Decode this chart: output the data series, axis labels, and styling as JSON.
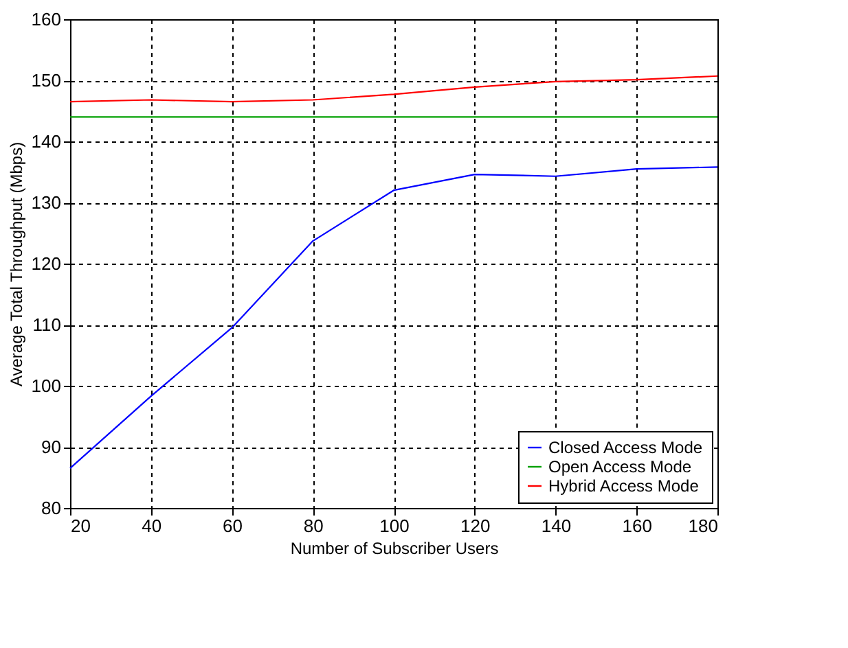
{
  "chart_data": {
    "type": "line",
    "xlabel": "Number of Subscriber Users",
    "ylabel": "Average Total Throughput (Mbps)",
    "x": [
      20,
      40,
      60,
      80,
      100,
      120,
      140,
      160,
      180
    ],
    "series": [
      {
        "name": "Closed Access Mode",
        "color": "#0000ff",
        "values": [
          86.5,
          98.3,
          109.5,
          123.7,
          132.0,
          134.6,
          134.3,
          135.5,
          135.8
        ]
      },
      {
        "name": "Open Access Mode",
        "color": "#00a000",
        "values": [
          144,
          144,
          144,
          144,
          144,
          144,
          144,
          144,
          144
        ]
      },
      {
        "name": "Hybrid Access Mode",
        "color": "#ff0000",
        "values": [
          146.5,
          146.8,
          146.5,
          146.8,
          147.7,
          148.9,
          149.8,
          150.1,
          150.7
        ]
      }
    ],
    "xlim": [
      20,
      180
    ],
    "xticks": [
      20,
      40,
      60,
      80,
      100,
      120,
      140,
      160,
      180
    ],
    "ylim": [
      80,
      160
    ],
    "yticks": [
      80,
      90,
      100,
      110,
      120,
      130,
      140,
      150,
      160
    ],
    "grid": true,
    "legend": "bottom right",
    "line_style": "solid",
    "marker": "none"
  }
}
